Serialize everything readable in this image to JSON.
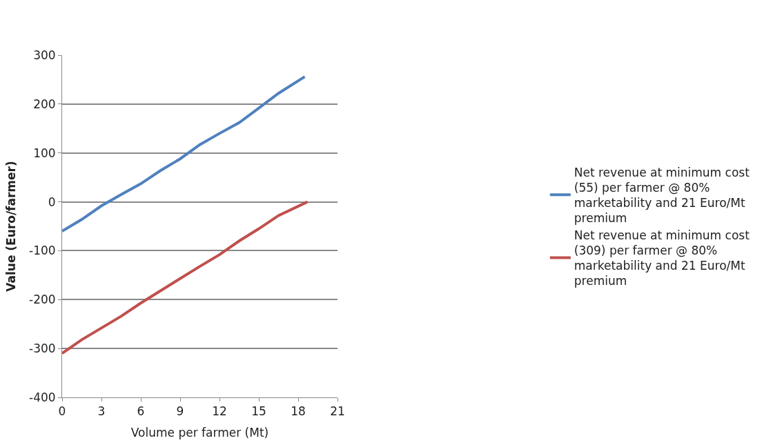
{
  "chart_data": {
    "type": "line",
    "xlabel": "Volume per farmer (Mt)",
    "ylabel": "Value (Euro/farmer)",
    "xlim": [
      0,
      21
    ],
    "xticks": [
      0,
      3,
      6,
      9,
      12,
      15,
      18,
      21
    ],
    "ylim": [
      -400,
      300
    ],
    "yticks": [
      -400,
      -300,
      -200,
      -100,
      0,
      100,
      200,
      300
    ],
    "grid": "y",
    "legend": "right",
    "marker": "none",
    "line_style": "solid",
    "series": [
      {
        "name": "Net revenue at minimum cost (55) per farmer @ 80% marketability and 21 Euro/Mt premium",
        "color": "#4f81bd",
        "x": [
          0,
          1.5,
          3,
          4.5,
          6,
          7.5,
          9,
          10.5,
          12,
          13.5,
          15,
          16.5,
          18.5
        ],
        "values": [
          -60,
          -36,
          -8,
          15,
          37,
          64,
          88,
          117,
          140,
          162,
          192,
          222,
          256
        ]
      },
      {
        "name": "Net revenue at minimum cost (309) per farmer @ 80% marketability and 21 Euro/Mt premium",
        "color": "#c0504d",
        "x": [
          0,
          1.5,
          3,
          4.5,
          6,
          7.5,
          9,
          10.5,
          12,
          13.5,
          15,
          16.5,
          18.7
        ],
        "values": [
          -310,
          -282,
          -258,
          -234,
          -207,
          -182,
          -157,
          -132,
          -108,
          -80,
          -55,
          -28,
          0
        ]
      }
    ]
  }
}
